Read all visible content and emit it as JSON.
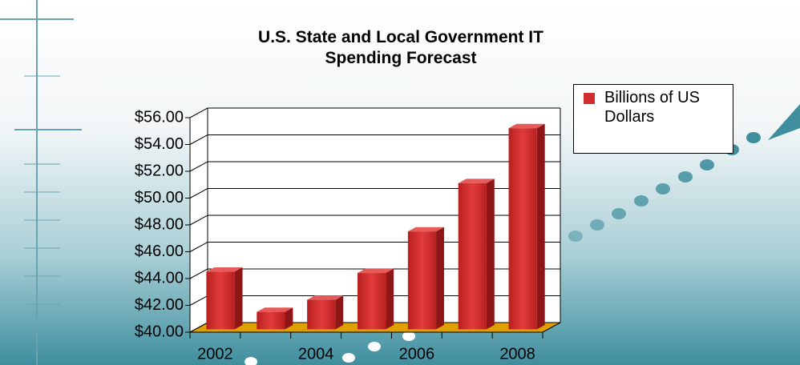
{
  "chart_data": {
    "type": "bar3d",
    "title": "U.S. State and Local Government IT Spending Forecast",
    "categories": [
      "2002",
      null,
      "2004",
      null,
      "2006",
      null,
      "2008"
    ],
    "series": [
      {
        "name": "Billions of US Dollars",
        "color": "#d02f2f",
        "values": [
          44.3,
          41.3,
          42.2,
          44.2,
          47.3,
          50.9,
          55.0
        ]
      }
    ],
    "ylim": [
      40,
      56
    ],
    "yticks": [
      {
        "value": 40,
        "label": "$40.00"
      },
      {
        "value": 42,
        "label": "$42.00"
      },
      {
        "value": 44,
        "label": "$44.00"
      },
      {
        "value": 46,
        "label": "$46.00"
      },
      {
        "value": 48,
        "label": "$48.00"
      },
      {
        "value": 50,
        "label": "$50.00"
      },
      {
        "value": 52,
        "label": "$52.00"
      },
      {
        "value": 54,
        "label": "$54.00"
      },
      {
        "value": 56,
        "label": "$56.00"
      }
    ],
    "grid": true,
    "legend": "top-right"
  }
}
